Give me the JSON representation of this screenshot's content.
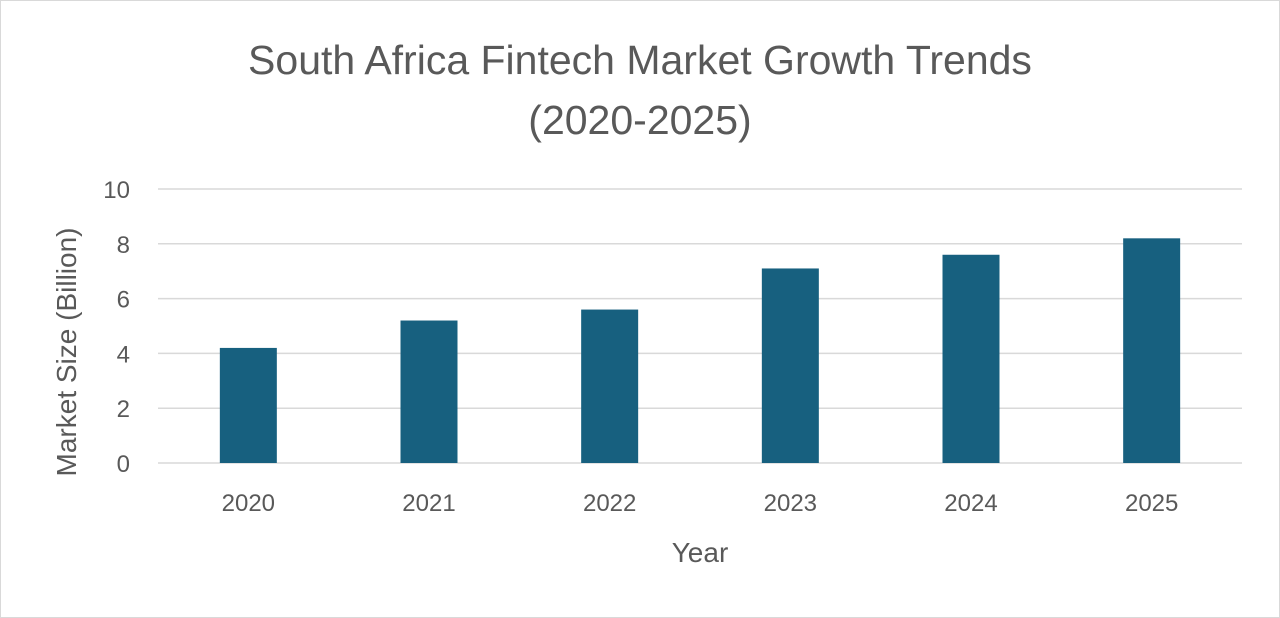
{
  "chart_data": {
    "type": "bar",
    "title_line1": "South Africa Fintech Market Growth Trends",
    "title_line2": "(2020-2025)",
    "categories": [
      "2020",
      "2021",
      "2022",
      "2023",
      "2024",
      "2025"
    ],
    "values": [
      4.2,
      5.2,
      5.6,
      7.1,
      7.6,
      8.2
    ],
    "xlabel": "Year",
    "ylabel": "Market Size (Billion)",
    "ylim": [
      0,
      10
    ],
    "yticks": [
      "0",
      "2",
      "4",
      "6",
      "8",
      "10"
    ],
    "grid": true,
    "legend": "none",
    "bar_color": "#17607f",
    "grid_color": "#d9d9d9",
    "text_color": "#595959"
  }
}
